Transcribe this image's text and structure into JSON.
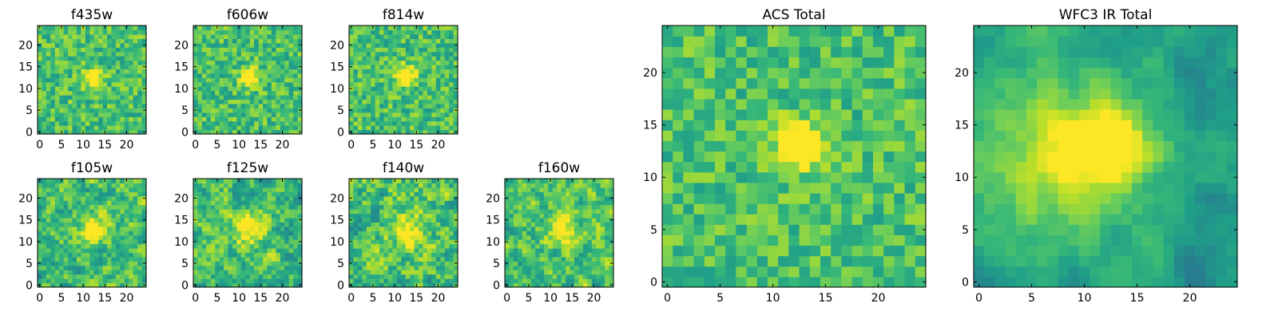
{
  "chart_data": [
    {
      "type": "heatmap",
      "title": "f435w",
      "xticks": [
        "0",
        "5",
        "10",
        "15",
        "20"
      ],
      "yticks": [
        "0",
        "5",
        "10",
        "15",
        "20"
      ],
      "n": 25,
      "xlim": [
        -0.5,
        24.5
      ],
      "ylim": [
        -0.5,
        24.5
      ],
      "seed": 11,
      "noise": 0.34,
      "smooth": 0,
      "peak": {
        "center": [
          12.5,
          12.5
        ],
        "sigma": 1.6,
        "amp": 0.45
      },
      "colormap": "viridis"
    },
    {
      "type": "heatmap",
      "title": "f606w",
      "xticks": [
        "0",
        "5",
        "10",
        "15",
        "20"
      ],
      "yticks": [
        "0",
        "5",
        "10",
        "15",
        "20"
      ],
      "n": 25,
      "xlim": [
        -0.5,
        24.5
      ],
      "ylim": [
        -0.5,
        24.5
      ],
      "seed": 23,
      "noise": 0.34,
      "smooth": 0,
      "peak": {
        "center": [
          12.5,
          12.5
        ],
        "sigma": 1.6,
        "amp": 0.5
      },
      "colormap": "viridis"
    },
    {
      "type": "heatmap",
      "title": "f814w",
      "xticks": [
        "0",
        "5",
        "10",
        "15",
        "20"
      ],
      "yticks": [
        "0",
        "5",
        "10",
        "15",
        "20"
      ],
      "n": 25,
      "xlim": [
        -0.5,
        24.5
      ],
      "ylim": [
        -0.5,
        24.5
      ],
      "seed": 37,
      "noise": 0.34,
      "smooth": 0,
      "peak": {
        "center": [
          12.5,
          13
        ],
        "sigma": 1.6,
        "amp": 0.5
      },
      "colormap": "viridis"
    },
    {
      "type": "heatmap",
      "title": "f105w",
      "xticks": [
        "0",
        "5",
        "10",
        "15",
        "20"
      ],
      "yticks": [
        "0",
        "5",
        "10",
        "15",
        "20"
      ],
      "n": 25,
      "xlim": [
        -0.5,
        24.5
      ],
      "ylim": [
        -0.5,
        24.5
      ],
      "seed": 41,
      "noise": 0.5,
      "smooth": 1,
      "peak": {
        "center": [
          12.5,
          13
        ],
        "sigma": 2.2,
        "amp": 0.5
      },
      "colormap": "viridis"
    },
    {
      "type": "heatmap",
      "title": "f125w",
      "xticks": [
        "0",
        "5",
        "10",
        "15",
        "20"
      ],
      "yticks": [
        "0",
        "5",
        "10",
        "15",
        "20"
      ],
      "n": 25,
      "xlim": [
        -0.5,
        24.5
      ],
      "ylim": [
        -0.5,
        24.5
      ],
      "seed": 53,
      "noise": 0.5,
      "smooth": 1,
      "peak": {
        "center": [
          12.5,
          13
        ],
        "sigma": 2.6,
        "amp": 0.35
      },
      "colormap": "viridis"
    },
    {
      "type": "heatmap",
      "title": "f140w",
      "xticks": [
        "0",
        "5",
        "10",
        "15",
        "20"
      ],
      "yticks": [
        "0",
        "5",
        "10",
        "15",
        "20"
      ],
      "n": 25,
      "xlim": [
        -0.5,
        24.5
      ],
      "ylim": [
        -0.5,
        24.5
      ],
      "seed": 67,
      "noise": 0.5,
      "smooth": 1,
      "peak": {
        "center": [
          13,
          12.5
        ],
        "sigma": 3,
        "amp": 0.3
      },
      "colormap": "viridis"
    },
    {
      "type": "heatmap",
      "title": "f160w",
      "xticks": [
        "0",
        "5",
        "10",
        "15",
        "20"
      ],
      "yticks": [
        "0",
        "5",
        "10",
        "15",
        "20"
      ],
      "n": 25,
      "xlim": [
        -0.5,
        24.5
      ],
      "ylim": [
        -0.5,
        24.5
      ],
      "seed": 79,
      "noise": 0.5,
      "smooth": 1,
      "peak": {
        "center": [
          13,
          13
        ],
        "sigma": 2.6,
        "amp": 0.35
      },
      "colormap": "viridis"
    },
    {
      "type": "heatmap",
      "title": "ACS Total",
      "xticks": [
        "0",
        "5",
        "10",
        "15",
        "20"
      ],
      "yticks": [
        "0",
        "5",
        "10",
        "15",
        "20"
      ],
      "n": 25,
      "xlim": [
        -0.5,
        24.5
      ],
      "ylim": [
        -0.5,
        24.5
      ],
      "seed": 97,
      "noise": 0.3,
      "smooth": 0,
      "peak": {
        "center": [
          12.5,
          13
        ],
        "sigma": 1.6,
        "amp": 0.55
      },
      "colormap": "viridis"
    },
    {
      "type": "heatmap",
      "title": "WFC3 IR Total",
      "xticks": [
        "0",
        "5",
        "10",
        "15",
        "20"
      ],
      "yticks": [
        "0",
        "5",
        "10",
        "15",
        "20"
      ],
      "n": 25,
      "xlim": [
        -0.5,
        24.5
      ],
      "ylim": [
        -0.5,
        24.5
      ],
      "seed": 131,
      "noise": 0.28,
      "smooth": 2,
      "peak": {
        "center": [
          12.5,
          13
        ],
        "sigma": 2.4,
        "amp": 0.5
      },
      "halo": {
        "center": [
          8,
          12
        ],
        "sigma": 6,
        "amp": 0.35
      },
      "colormap": "viridis"
    }
  ],
  "colors": {
    "viridis": [
      "#440154",
      "#482878",
      "#3e4989",
      "#31688e",
      "#26828e",
      "#1f9e89",
      "#35b779",
      "#6ece58",
      "#b5de2b",
      "#fde725"
    ]
  }
}
